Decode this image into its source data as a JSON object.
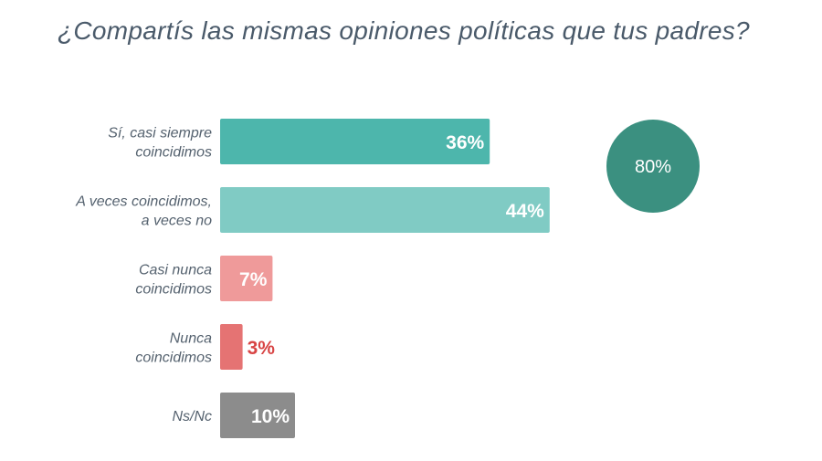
{
  "chart_data": {
    "type": "bar",
    "orientation": "horizontal",
    "title": "¿Compartís las mismas opiniones políticas que tus padres?",
    "categories": [
      [
        "Sí, casi siempre",
        "coincidimos"
      ],
      [
        "A veces coincidimos,",
        "a veces no"
      ],
      [
        "Casi nunca",
        "coincidimos"
      ],
      [
        "Nunca",
        "coincidimos"
      ],
      [
        "Ns/Nc"
      ]
    ],
    "values": [
      36,
      44,
      7,
      3,
      10
    ],
    "value_labels": [
      "36%",
      "44%",
      "7%",
      "3%",
      "10%"
    ],
    "bar_colors": [
      "#4db6ac",
      "#80cbc4",
      "#ef9a9a",
      "#e57373",
      "#8c8c8c"
    ],
    "value_label_colors": [
      "#ffffff",
      "#ffffff",
      "#ffffff",
      "#d84545",
      "#ffffff"
    ],
    "value_label_inside": [
      true,
      true,
      true,
      false,
      true
    ],
    "xlim": [
      0,
      100
    ],
    "grid": false,
    "annotation": {
      "text": "80%",
      "represents": "Sí, casi siempre coincidimos + A veces coincidimos, a veces no",
      "color": "#3b9080"
    }
  }
}
